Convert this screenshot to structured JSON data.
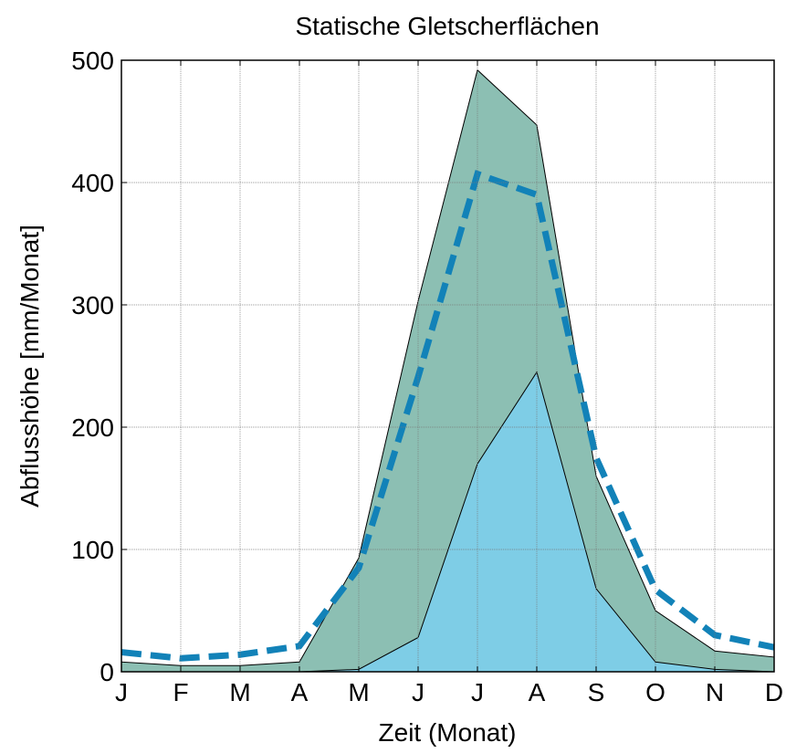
{
  "chart_data": {
    "type": "area",
    "title": "Statische Gletscherflächen",
    "xlabel": "Zeit (Monat)",
    "ylabel": "Abflusshöhe [mm/Monat]",
    "categories": [
      "J",
      "F",
      "M",
      "A",
      "M",
      "J",
      "J",
      "A",
      "S",
      "O",
      "N",
      "D"
    ],
    "series": [
      {
        "type": "area",
        "color": "#8cbfb3",
        "values": [
          8,
          5,
          5,
          8,
          93,
          303,
          492,
          447,
          160,
          50,
          17,
          12
        ]
      },
      {
        "type": "area",
        "color": "#7ecde6",
        "values": [
          0,
          0,
          0,
          0,
          2,
          28,
          170,
          245,
          68,
          8,
          2,
          0
        ]
      },
      {
        "type": "line",
        "color": "#1282b8",
        "dashed": true,
        "values": [
          16,
          11,
          14,
          21,
          85,
          241,
          407,
          390,
          175,
          67,
          30,
          20
        ]
      }
    ],
    "ylim": [
      0,
      500
    ],
    "yticks": [
      0,
      100,
      200,
      300,
      400,
      500
    ],
    "grid": true
  }
}
